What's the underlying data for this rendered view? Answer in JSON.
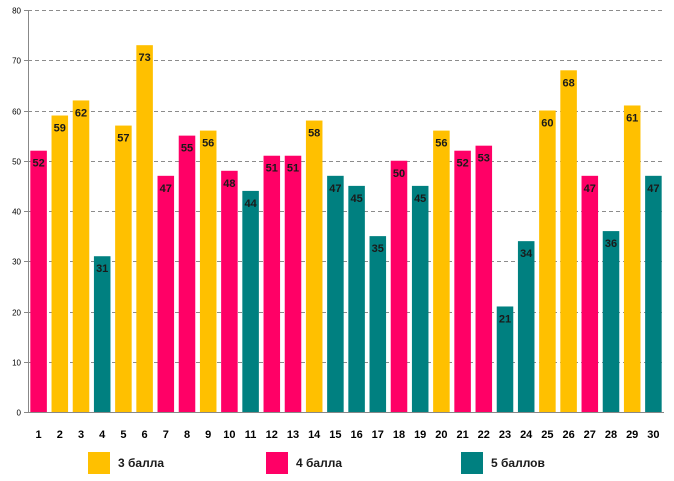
{
  "chart_data": {
    "type": "bar",
    "title": "",
    "xlabel": "",
    "ylabel": "",
    "ylim": [
      0,
      80
    ],
    "y_ticks": [
      0,
      10,
      20,
      30,
      40,
      50,
      60,
      70,
      80
    ],
    "grid": true,
    "categories": [
      "1",
      "2",
      "3",
      "4",
      "5",
      "6",
      "7",
      "8",
      "9",
      "10",
      "11",
      "12",
      "13",
      "14",
      "15",
      "16",
      "17",
      "18",
      "19",
      "20",
      "21",
      "22",
      "23",
      "24",
      "25",
      "26",
      "27",
      "28",
      "29",
      "30"
    ],
    "values": [
      52,
      59,
      62,
      31,
      57,
      73,
      47,
      55,
      56,
      48,
      44,
      51,
      51,
      58,
      47,
      45,
      35,
      50,
      45,
      56,
      52,
      53,
      21,
      34,
      60,
      68,
      47,
      36,
      61,
      47
    ],
    "groups": [
      "4",
      "3",
      "3",
      "5",
      "3",
      "3",
      "4",
      "4",
      "3",
      "4",
      "5",
      "4",
      "4",
      "3",
      "5",
      "5",
      "5",
      "4",
      "5",
      "3",
      "4",
      "4",
      "5",
      "5",
      "3",
      "3",
      "4",
      "5",
      "3",
      "5"
    ],
    "series": [
      {
        "key": "3",
        "name": "3 балла",
        "color": "#FFC000"
      },
      {
        "key": "4",
        "name": "4 балла",
        "color": "#FF0066"
      },
      {
        "key": "5",
        "name": "5 баллов",
        "color": "#008080"
      }
    ],
    "legend_position": "bottom"
  }
}
